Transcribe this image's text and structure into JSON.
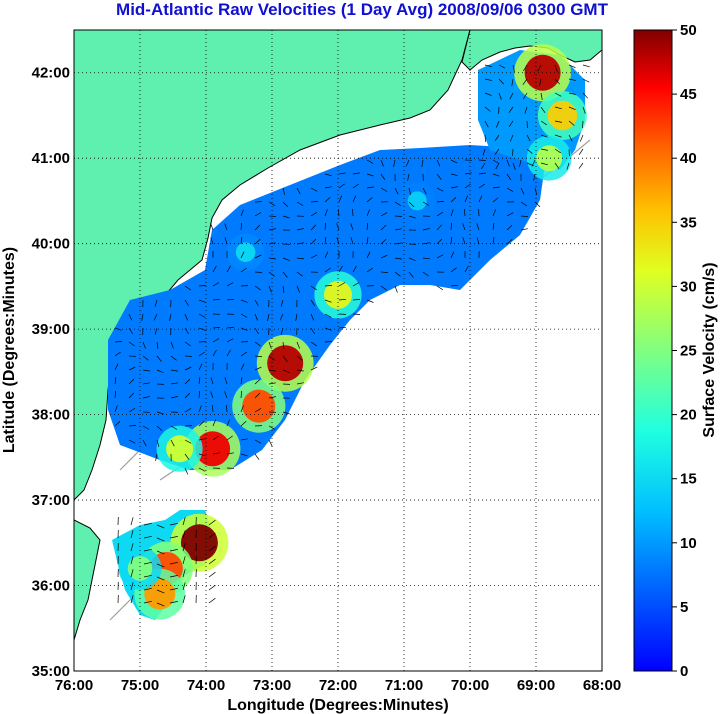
{
  "chart_data": {
    "type": "heatmap",
    "title": "Mid-Atlantic Raw Velocities (1 Day Avg) 2008/09/06 0300 GMT",
    "xlabel": "Longitude (Degrees:Minutes)",
    "ylabel": "Latitude (Degrees:Minutes)",
    "x_ticks": [
      "76:00",
      "75:00",
      "74:00",
      "73:00",
      "72:00",
      "71:00",
      "70:00",
      "69:00",
      "68:00"
    ],
    "y_ticks": [
      "42:00",
      "41:00",
      "40:00",
      "39:00",
      "38:00",
      "37:00",
      "36:00",
      "35:00"
    ],
    "xlim": [
      -76,
      -68
    ],
    "ylim": [
      35,
      42.5
    ],
    "grid": true,
    "colorbar": {
      "label": "Surface Velocity (cm/s)",
      "range": [
        0,
        50
      ],
      "ticks": [
        "0",
        "5",
        "10",
        "15",
        "20",
        "25",
        "30",
        "35",
        "40",
        "45",
        "50"
      ],
      "colormap": "jet"
    },
    "colors": {
      "land": "#5ff0b0",
      "title": "#1010d0",
      "contour": "#a0a0a0"
    },
    "regions": [
      {
        "name": "main-field",
        "base_speed_cm_s": 8
      },
      {
        "name": "cape-region",
        "base_speed_cm_s": 15
      }
    ],
    "hotspots": [
      {
        "lon": -72.8,
        "lat": 38.6,
        "speed_cm_s": 48
      },
      {
        "lon": -73.2,
        "lat": 38.1,
        "speed_cm_s": 42
      },
      {
        "lon": -73.9,
        "lat": 37.6,
        "speed_cm_s": 46
      },
      {
        "lon": -74.4,
        "lat": 37.6,
        "speed_cm_s": 30
      },
      {
        "lon": -72.0,
        "lat": 39.4,
        "speed_cm_s": 32
      },
      {
        "lon": -68.9,
        "lat": 42.0,
        "speed_cm_s": 48
      },
      {
        "lon": -68.6,
        "lat": 41.5,
        "speed_cm_s": 35
      },
      {
        "lon": -68.8,
        "lat": 41.0,
        "speed_cm_s": 28
      },
      {
        "lon": -74.1,
        "lat": 36.5,
        "speed_cm_s": 50
      },
      {
        "lon": -74.6,
        "lat": 36.2,
        "speed_cm_s": 42
      },
      {
        "lon": -74.7,
        "lat": 35.9,
        "speed_cm_s": 38
      },
      {
        "lon": -75.0,
        "lat": 36.2,
        "speed_cm_s": 25
      },
      {
        "lon": -73.4,
        "lat": 39.9,
        "speed_cm_s": 15
      },
      {
        "lon": -70.8,
        "lat": 40.5,
        "speed_cm_s": 14
      }
    ]
  }
}
